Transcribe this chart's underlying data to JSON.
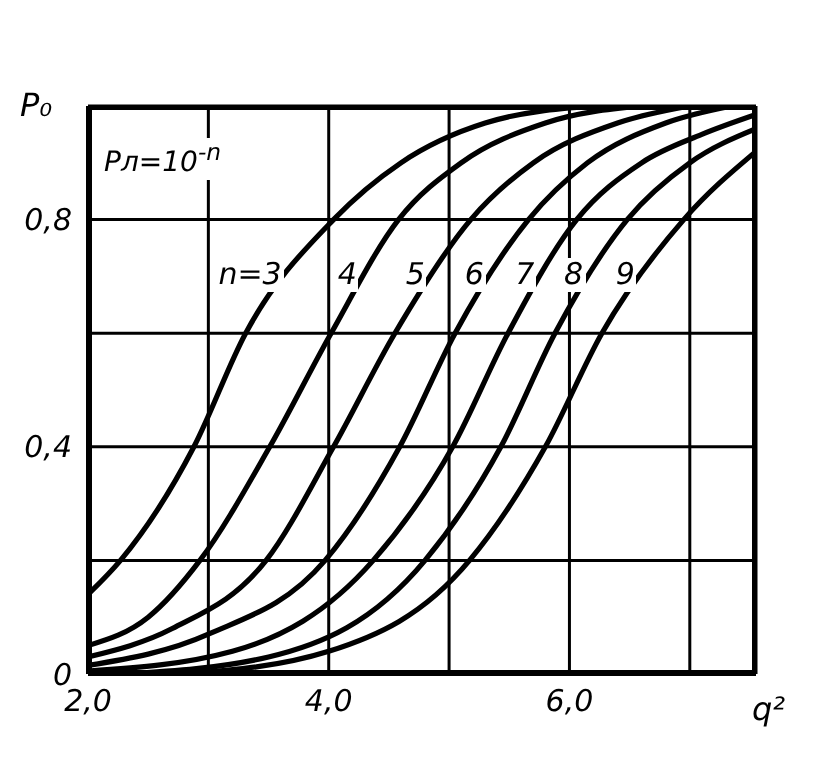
{
  "chart_data": {
    "type": "line",
    "xlabel": "q²",
    "ylabel": "P₀",
    "annotations": [
      "Pл=10$^{-n}$"
    ],
    "xlim": [
      2,
      7.55
    ],
    "xticks": [
      {
        "value": 2,
        "label": "2,0"
      },
      {
        "value": 3,
        "label": null
      },
      {
        "value": 4,
        "label": "4,0"
      },
      {
        "value": 5,
        "label": null
      },
      {
        "value": 6,
        "label": "6,0"
      },
      {
        "value": 7,
        "label": null
      }
    ],
    "ylim": [
      0,
      1
    ],
    "yticks": [
      {
        "value": 0,
        "label": "0"
      },
      {
        "value": 0.2,
        "label": null
      },
      {
        "value": 0.4,
        "label": "0,4"
      },
      {
        "value": 0.6,
        "label": null
      },
      {
        "value": 0.8,
        "label": "0,8"
      },
      {
        "value": 1,
        "label": null
      }
    ],
    "grid": true,
    "legend": false,
    "marker": "none",
    "line_style": "solid",
    "series": [
      {
        "name": "n=3",
        "color": "#000000",
        "x": [
          2,
          2.27,
          2.88,
          3.31,
          4.04,
          4.6,
          5.3,
          6.2
        ],
        "values": [
          0.14,
          0.2,
          0.4,
          0.6,
          0.8,
          0.9,
          0.97,
          1.0
        ]
      },
      {
        "name": "4",
        "color": "#000000",
        "x": [
          2,
          2.5,
          2.93,
          3.51,
          4.02,
          4.58,
          5.1,
          5.8,
          6.6
        ],
        "values": [
          0.05,
          0.1,
          0.2,
          0.4,
          0.6,
          0.8,
          0.9,
          0.97,
          1.0
        ]
      },
      {
        "name": "5",
        "color": "#000000",
        "x": [
          2,
          2.7,
          3.48,
          4.04,
          4.55,
          5.18,
          5.7,
          6.4,
          7.0
        ],
        "values": [
          0.03,
          0.08,
          0.2,
          0.4,
          0.6,
          0.8,
          0.9,
          0.97,
          1.0
        ]
      },
      {
        "name": "6",
        "color": "#000000",
        "x": [
          2,
          3.0,
          3.97,
          4.59,
          5.05,
          5.66,
          6.15,
          6.8,
          7.35
        ],
        "values": [
          0.015,
          0.07,
          0.2,
          0.4,
          0.6,
          0.8,
          0.9,
          0.97,
          1.0
        ]
      },
      {
        "name": "7",
        "color": "#000000",
        "x": [
          2,
          3.2,
          4.37,
          5.03,
          5.49,
          6.06,
          6.6,
          7.1,
          7.55
        ],
        "values": [
          0.005,
          0.04,
          0.2,
          0.4,
          0.6,
          0.8,
          0.9,
          0.95,
          0.985
        ]
      },
      {
        "name": "8",
        "color": "#000000",
        "x": [
          2.3,
          3.5,
          4.8,
          5.43,
          5.88,
          6.48,
          7.0,
          7.55
        ],
        "values": [
          0,
          0.03,
          0.2,
          0.4,
          0.6,
          0.8,
          0.9,
          0.96
        ]
      },
      {
        "name": "9",
        "color": "#000000",
        "x": [
          2.8,
          4.0,
          5.17,
          5.8,
          6.27,
          6.95,
          7.55
        ],
        "values": [
          0,
          0.04,
          0.2,
          0.4,
          0.6,
          0.8,
          0.92
        ]
      }
    ]
  }
}
